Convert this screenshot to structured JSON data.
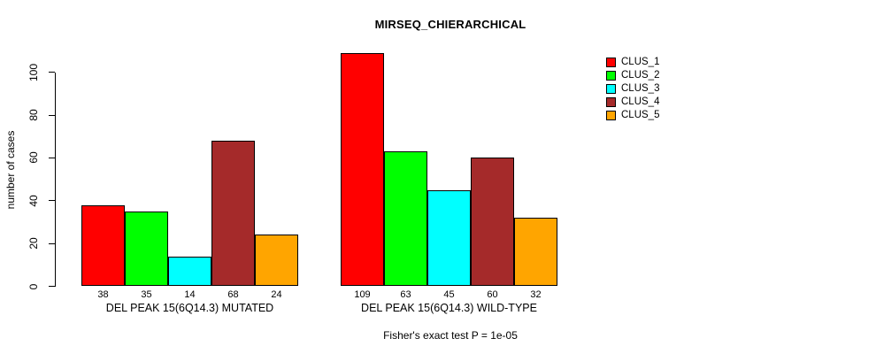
{
  "chart_data": {
    "type": "bar",
    "title": "MIRSEQ_CHIERARCHICAL",
    "ylabel": "number of cases",
    "xlabel": "",
    "ylim": [
      0,
      100
    ],
    "yticks": [
      0,
      20,
      40,
      60,
      80,
      100
    ],
    "grid": false,
    "legend_position": "top-right",
    "bar_border_color": "#000000",
    "series": [
      {
        "name": "CLUS_1",
        "color": "#FF0000"
      },
      {
        "name": "CLUS_2",
        "color": "#00FF00"
      },
      {
        "name": "CLUS_3",
        "color": "#00FFFF"
      },
      {
        "name": "CLUS_4",
        "color": "#A52A2A"
      },
      {
        "name": "CLUS_5",
        "color": "#FFA500"
      }
    ],
    "groups": [
      {
        "label": "DEL PEAK 15(6Q14.3) MUTATED",
        "values": [
          38,
          35,
          14,
          68,
          24
        ]
      },
      {
        "label": "DEL PEAK 15(6Q14.3) WILD-TYPE",
        "values": [
          109,
          63,
          45,
          60,
          32
        ]
      }
    ],
    "bar_value_labels_shown": true,
    "annotation": "Fisher's exact test P = 1e-05"
  }
}
